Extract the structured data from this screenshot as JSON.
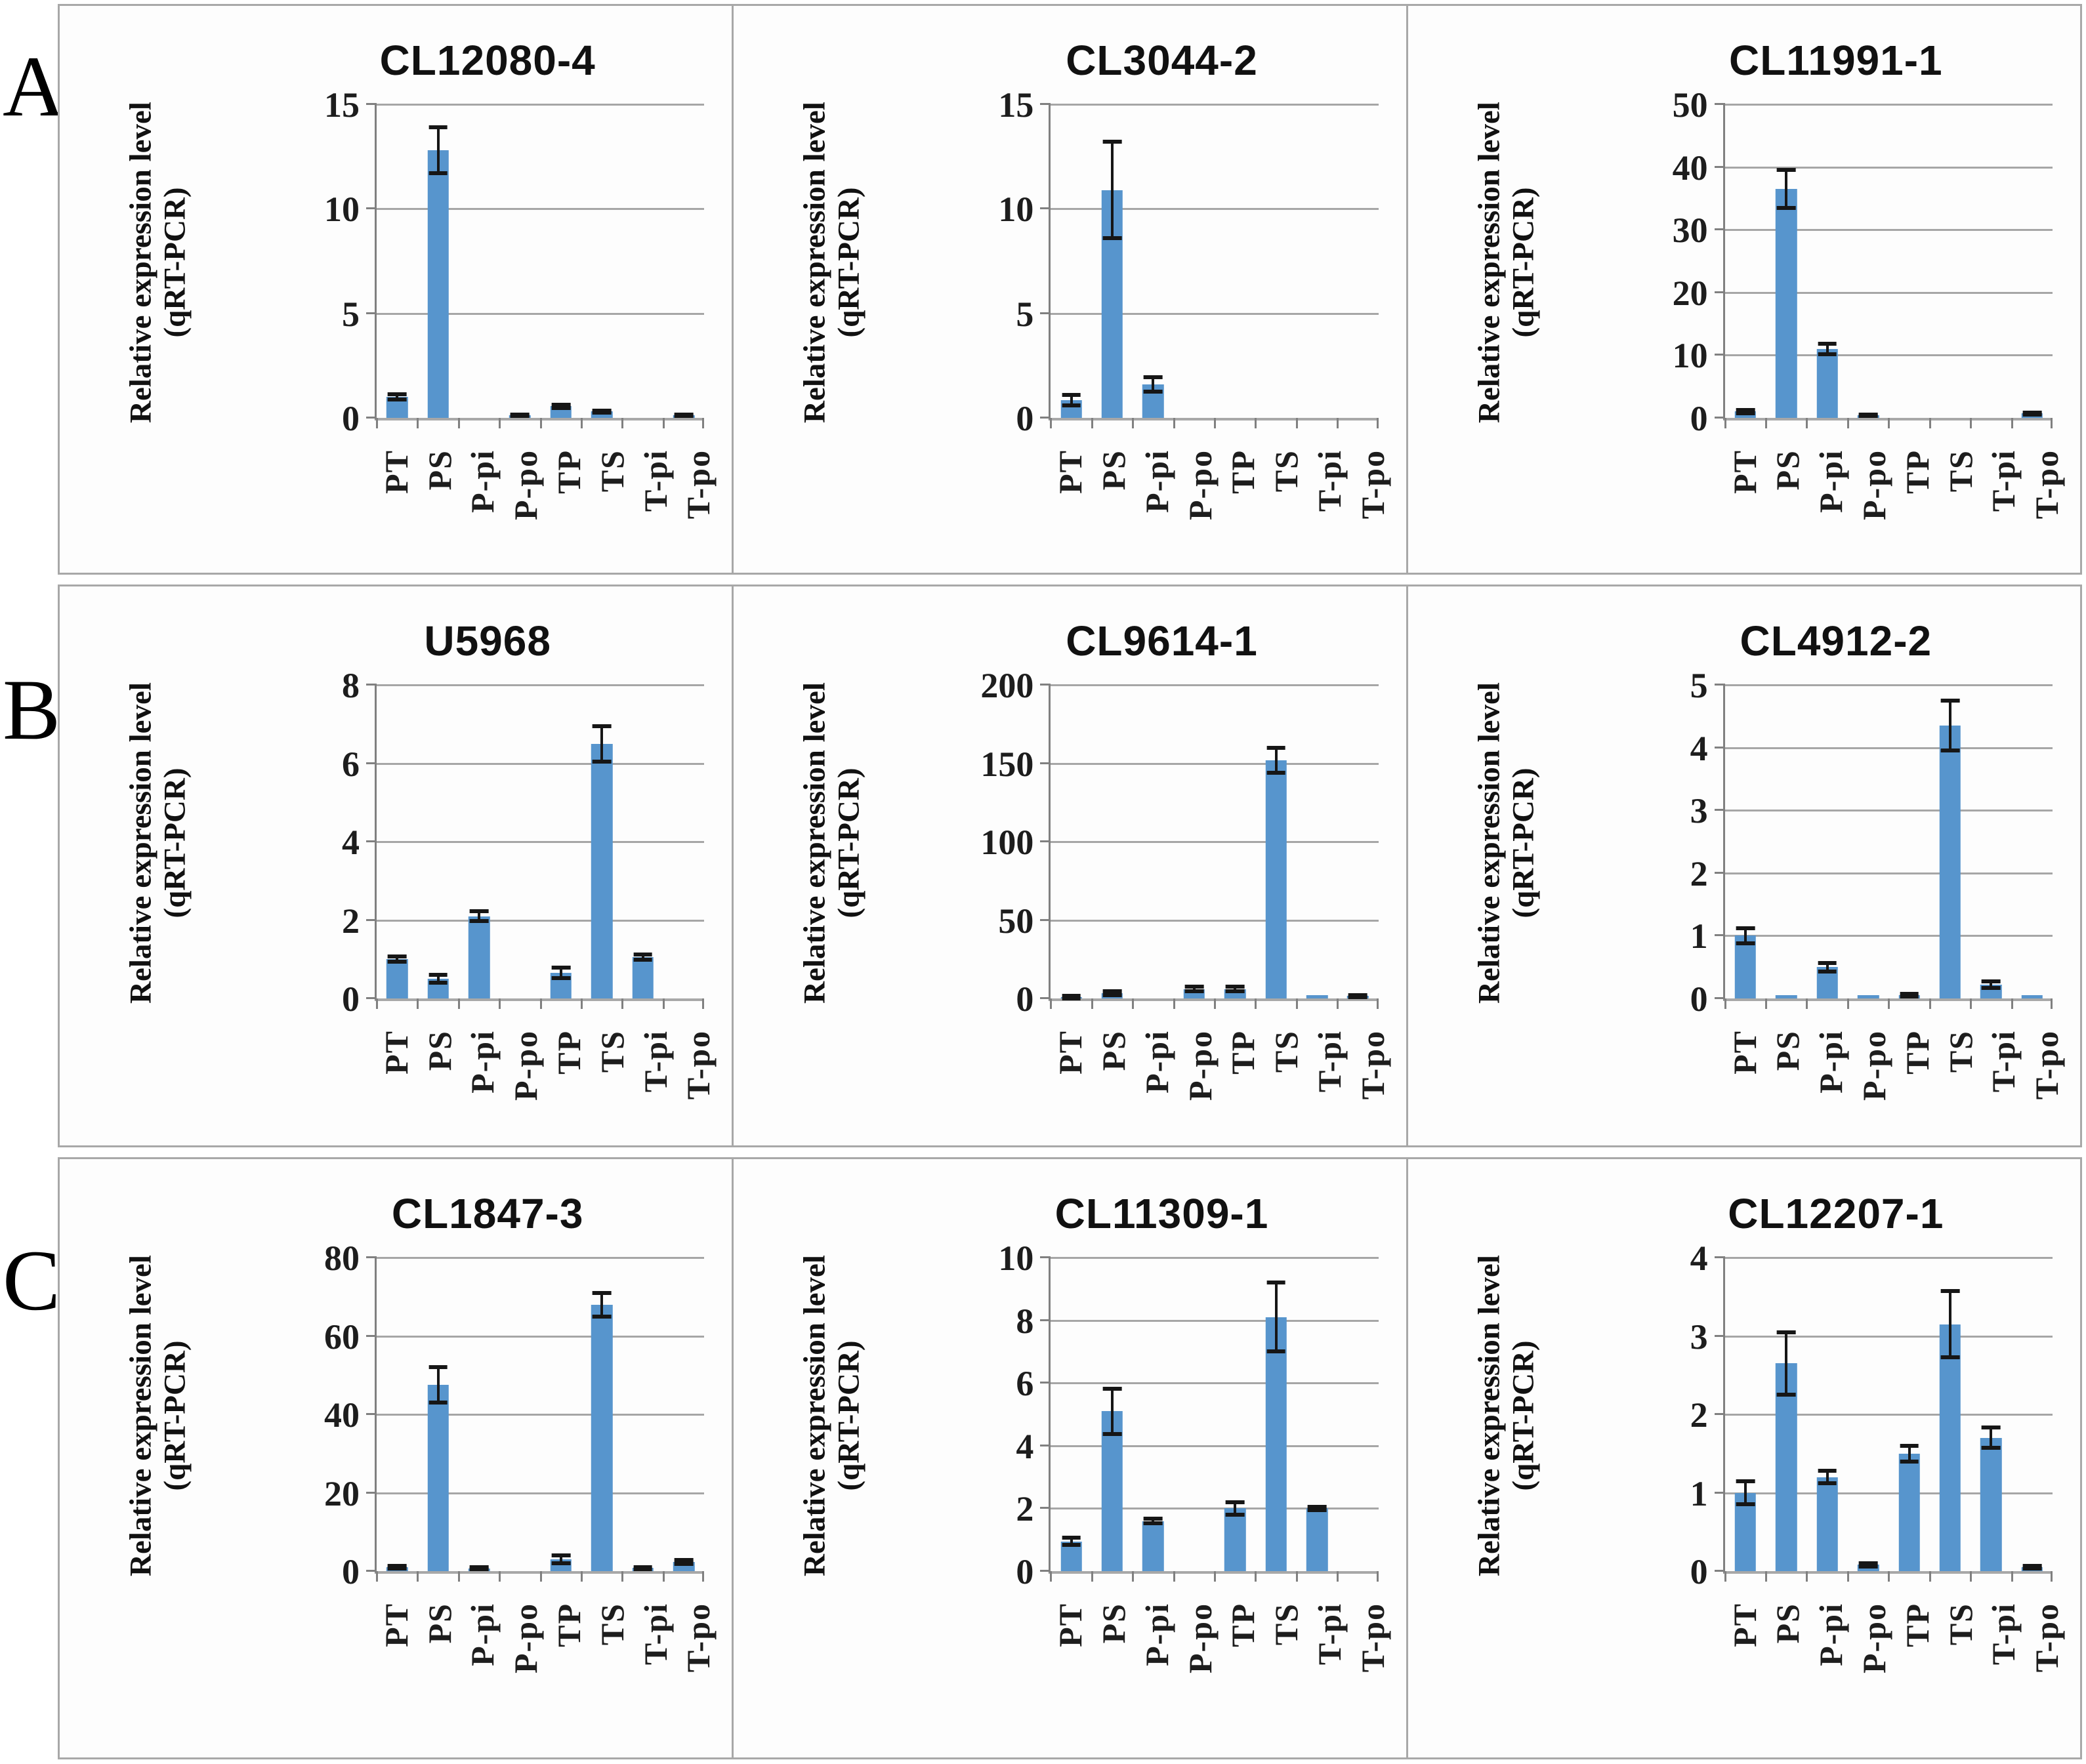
{
  "panels": [
    {
      "label": "A"
    },
    {
      "label": "B"
    },
    {
      "label": "C"
    }
  ],
  "axis": {
    "ylabel_line1": "Relative expression level",
    "ylabel_line2": "(qRT-PCR)",
    "categories": [
      "PT",
      "PS",
      "P-pi",
      "P-po",
      "TP",
      "TS",
      "T-pi",
      "T-po"
    ]
  },
  "colors": {
    "bar": "#5795cd",
    "error_bar": "#161616",
    "gridline": "#a6a6a6",
    "axis_line": "#808080",
    "panel_border": "#a8a8a8"
  },
  "chart_data": [
    {
      "type": "bar",
      "panel": "A",
      "title": "CL12080-4",
      "ylabel": "Relative expression level (qRT-PCR)",
      "categories": [
        "PT",
        "PS",
        "P-pi",
        "P-po",
        "TP",
        "TS",
        "T-pi",
        "T-po"
      ],
      "values": [
        1,
        12.8,
        0,
        0.12,
        0.55,
        0.3,
        0,
        0.12
      ],
      "errors": [
        0.12,
        1.1,
        0,
        0.04,
        0.08,
        0.05,
        0,
        0.04
      ],
      "ylim": [
        0,
        15
      ],
      "yticks": [
        0,
        5,
        10,
        15
      ],
      "grid": true,
      "legend": false
    },
    {
      "type": "bar",
      "panel": "A",
      "title": "CL3044-2",
      "ylabel": "Relative expression level (qRT-PCR)",
      "categories": [
        "PT",
        "PS",
        "P-pi",
        "P-po",
        "TP",
        "TS",
        "T-pi",
        "T-po"
      ],
      "values": [
        0.85,
        10.9,
        1.6,
        0,
        0,
        0,
        0,
        0
      ],
      "errors": [
        0.25,
        2.3,
        0.35,
        0,
        0,
        0,
        0,
        0
      ],
      "ylim": [
        0,
        15
      ],
      "yticks": [
        0,
        5,
        10,
        15
      ],
      "grid": true,
      "legend": false
    },
    {
      "type": "bar",
      "panel": "A",
      "title": "CL11991-1",
      "ylabel": "Relative expression level (qRT-PCR)",
      "categories": [
        "PT",
        "PS",
        "P-pi",
        "P-po",
        "TP",
        "TS",
        "T-pi",
        "T-po"
      ],
      "values": [
        1,
        36.5,
        11,
        0.4,
        0,
        0,
        0,
        0.7
      ],
      "errors": [
        0.25,
        3,
        0.8,
        0.1,
        0,
        0,
        0,
        0.15
      ],
      "ylim": [
        0,
        50
      ],
      "yticks": [
        0,
        10,
        20,
        30,
        40,
        50
      ],
      "grid": true,
      "legend": false
    },
    {
      "type": "bar",
      "panel": "B",
      "title": "U5968",
      "ylabel": "Relative expression level (qRT-PCR)",
      "categories": [
        "PT",
        "PS",
        "P-pi",
        "P-po",
        "TP",
        "TS",
        "T-pi",
        "T-po"
      ],
      "values": [
        1,
        0.5,
        2.1,
        0,
        0.65,
        6.5,
        1.05,
        0
      ],
      "errors": [
        0.07,
        0.1,
        0.12,
        0,
        0.13,
        0.45,
        0.07,
        0
      ],
      "ylim": [
        0,
        8
      ],
      "yticks": [
        0,
        2,
        4,
        6,
        8
      ],
      "grid": true,
      "legend": false
    },
    {
      "type": "bar",
      "panel": "B",
      "title": "CL9614-1",
      "ylabel": "Relative expression level (qRT-PCR)",
      "categories": [
        "PT",
        "PS",
        "P-pi",
        "P-po",
        "TP",
        "TS",
        "T-pi",
        "T-po"
      ],
      "values": [
        1,
        3.5,
        0,
        6,
        6,
        152,
        2,
        1.5
      ],
      "errors": [
        0.8,
        1.2,
        0,
        1.5,
        1.5,
        8,
        0,
        0.8
      ],
      "ylim": [
        0,
        200
      ],
      "yticks": [
        0,
        50,
        100,
        150,
        200
      ],
      "grid": true,
      "legend": false
    },
    {
      "type": "bar",
      "panel": "B",
      "title": "CL4912-2",
      "ylabel": "Relative expression level (qRT-PCR)",
      "categories": [
        "PT",
        "PS",
        "P-pi",
        "P-po",
        "TP",
        "TS",
        "T-pi",
        "T-po"
      ],
      "values": [
        1,
        0.05,
        0.5,
        0.05,
        0.05,
        4.35,
        0.22,
        0.05
      ],
      "errors": [
        0.12,
        0,
        0.07,
        0,
        0.02,
        0.4,
        0.05,
        0
      ],
      "ylim": [
        0,
        5
      ],
      "yticks": [
        0,
        1,
        2,
        3,
        4,
        5
      ],
      "grid": true,
      "legend": false
    },
    {
      "type": "bar",
      "panel": "C",
      "title": "CL1847-3",
      "ylabel": "Relative expression level (qRT-PCR)",
      "categories": [
        "PT",
        "PS",
        "P-pi",
        "P-po",
        "TP",
        "TS",
        "T-pi",
        "T-po"
      ],
      "values": [
        1,
        47.5,
        0.7,
        0,
        3,
        68,
        0.8,
        2.3
      ],
      "errors": [
        0.4,
        4.5,
        0.25,
        0,
        1,
        3,
        0.25,
        0.5
      ],
      "ylim": [
        0,
        80
      ],
      "yticks": [
        0,
        20,
        40,
        60,
        80
      ],
      "grid": true,
      "legend": false
    },
    {
      "type": "bar",
      "panel": "C",
      "title": "CL11309-1",
      "ylabel": "Relative expression level (qRT-PCR)",
      "categories": [
        "PT",
        "PS",
        "P-pi",
        "P-po",
        "TP",
        "TS",
        "T-pi",
        "T-po"
      ],
      "values": [
        0.95,
        5.1,
        1.6,
        0,
        2,
        8.1,
        2,
        0
      ],
      "errors": [
        0.12,
        0.72,
        0.07,
        0,
        0.2,
        1.1,
        0.06,
        0
      ],
      "ylim": [
        0,
        10
      ],
      "yticks": [
        0,
        2,
        4,
        6,
        8,
        10
      ],
      "grid": true,
      "legend": false
    },
    {
      "type": "bar",
      "panel": "C",
      "title": "CL12207-1",
      "ylabel": "Relative expression level (qRT-PCR)",
      "categories": [
        "PT",
        "PS",
        "P-pi",
        "P-po",
        "TP",
        "TS",
        "T-pi",
        "T-po"
      ],
      "values": [
        1,
        2.65,
        1.2,
        0.08,
        1.5,
        3.15,
        1.7,
        0.05
      ],
      "errors": [
        0.15,
        0.4,
        0.08,
        0.02,
        0.1,
        0.42,
        0.13,
        0.02
      ],
      "ylim": [
        0,
        4
      ],
      "yticks": [
        0,
        1,
        2,
        3,
        4
      ],
      "grid": true,
      "legend": false
    }
  ]
}
